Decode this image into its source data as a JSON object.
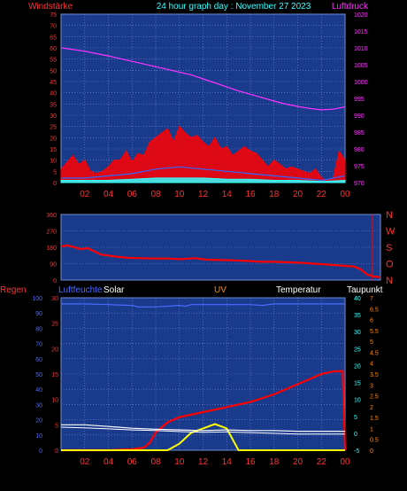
{
  "header": {
    "left_label": "Windstärke",
    "title": "24 hour graph day : November 27 2023",
    "right_label": "Luftdruck"
  },
  "panel2": {
    "direction_labels": [
      "N",
      "W",
      "S",
      "O",
      "N"
    ]
  },
  "panel3": {
    "labels": {
      "rain": "Regen",
      "humidity": "Luftfeuchte",
      "solar": "Solar",
      "uv": "UV",
      "temperature": "Temperatur",
      "dewpoint": "Taupunkt"
    }
  },
  "colors": {
    "plot_bg": "#1a3a8c",
    "grid": "#6f8fd8",
    "red": "#ff0000",
    "pressure": "#ff33ff",
    "gust_cyan": "#33ffff",
    "gust_blue": "#3366ff",
    "axis_cyan": "#33ffff",
    "axis_red": "#ff3333",
    "axis_orange": "#ff8a00",
    "axis_blue": "#4a6bff",
    "white": "#ffffff",
    "solar_yellow": "#ffff00"
  },
  "chart_data": [
    {
      "type": "line",
      "title": "24 hour graph day : November 27 2023",
      "ylabel": "Windstärke",
      "y2label": "Luftdruck",
      "x_ticks": [
        "02",
        "04",
        "06",
        "08",
        "10",
        "12",
        "14",
        "16",
        "18",
        "20",
        "22",
        "00"
      ],
      "ylim": [
        0,
        75
      ],
      "y_ticks": [
        0,
        5,
        10,
        15,
        20,
        25,
        30,
        35,
        40,
        45,
        50,
        55,
        60,
        65,
        70,
        75
      ],
      "y2lim": [
        970,
        1020
      ],
      "y2_ticks": [
        970,
        975,
        980,
        985,
        990,
        995,
        1000,
        1005,
        1010,
        1015,
        1020
      ],
      "grid": true,
      "series": [
        {
          "name": "Luftdruck",
          "axis": "right",
          "x": [
            0,
            1,
            2,
            3,
            4,
            5,
            6,
            7,
            8,
            9,
            10,
            11,
            12,
            13,
            14,
            15,
            16,
            17,
            18,
            19,
            20,
            21,
            22,
            23,
            24
          ],
          "values": [
            1010,
            1009.5,
            1009,
            1008.3,
            1007.6,
            1006.8,
            1006,
            1005.2,
            1004.4,
            1003.6,
            1002.8,
            1002,
            1000.8,
            999.6,
            998.4,
            997.2,
            996.2,
            995.2,
            994.2,
            993.3,
            992.6,
            992,
            991.6,
            991.8,
            992.5
          ]
        },
        {
          "name": "wind_gust",
          "axis": "left",
          "x": [
            0,
            0.5,
            1,
            1.5,
            2,
            2.5,
            3,
            3.5,
            4,
            4.5,
            5,
            5.5,
            6,
            6.5,
            7,
            7.5,
            8,
            8.5,
            9,
            9.5,
            10,
            10.5,
            11,
            11.5,
            12,
            12.5,
            13,
            13.5,
            14,
            14.5,
            15,
            15.5,
            16,
            16.5,
            17,
            17.5,
            18,
            18.5,
            19,
            19.5,
            20,
            20.5,
            21,
            21.5,
            22,
            22.5,
            23,
            23.5,
            24
          ],
          "values": [
            6,
            9,
            12,
            8,
            10,
            5,
            4,
            5,
            7,
            10,
            10,
            14,
            9,
            13,
            12,
            18,
            20,
            22,
            24,
            18,
            25,
            22,
            20,
            21,
            18,
            16,
            20,
            15,
            16,
            12,
            14,
            16,
            14,
            13,
            10,
            7,
            10,
            8,
            6,
            7,
            6,
            5,
            4,
            6,
            2,
            1,
            2,
            14,
            10
          ]
        },
        {
          "name": "wind_mean",
          "axis": "left",
          "x": [
            0,
            2,
            4,
            6,
            8,
            10,
            12,
            14,
            16,
            18,
            20,
            22,
            24
          ],
          "values": [
            2,
            2,
            3,
            4,
            6,
            7,
            6,
            5,
            4,
            3,
            2,
            1,
            3
          ]
        },
        {
          "name": "wind_low",
          "axis": "left",
          "x": [
            0,
            2,
            4,
            6,
            8,
            10,
            12,
            14,
            16,
            18,
            20,
            22,
            24
          ],
          "values": [
            1,
            1,
            1,
            1.5,
            2,
            2,
            2,
            1.5,
            1.5,
            1,
            1,
            0.5,
            1
          ]
        }
      ]
    },
    {
      "type": "scatter",
      "y_ticks": [
        0,
        90,
        180,
        270,
        360
      ],
      "ylim": [
        0,
        360
      ],
      "x_ticks": [],
      "grid": true,
      "series": [
        {
          "name": "wind_direction",
          "x": [
            0,
            0.5,
            1,
            1.5,
            2,
            3,
            4,
            5,
            6,
            7,
            8,
            9,
            10,
            11,
            12,
            13,
            14,
            15,
            16,
            17,
            18,
            19,
            20,
            21,
            22,
            22.5,
            23,
            23.5,
            24
          ],
          "values": [
            185,
            190,
            180,
            170,
            175,
            140,
            130,
            122,
            120,
            118,
            118,
            115,
            120,
            112,
            110,
            108,
            105,
            100,
            100,
            98,
            95,
            90,
            85,
            80,
            75,
            60,
            30,
            20,
            15
          ]
        }
      ]
    },
    {
      "type": "line",
      "x_ticks": [
        "02",
        "04",
        "06",
        "08",
        "10",
        "12",
        "14",
        "16",
        "18",
        "20",
        "22",
        "00"
      ],
      "ylim": [
        0,
        100
      ],
      "y_ticks": [
        0,
        10,
        20,
        30,
        40,
        50,
        60,
        70,
        80,
        90,
        100
      ],
      "rain_ticks": [
        0,
        5,
        10,
        15,
        20,
        25,
        30
      ],
      "temp_ticks": [
        -5,
        0,
        5,
        10,
        15,
        20,
        25,
        30,
        35,
        40
      ],
      "uv_ticks": [
        0,
        0.5,
        1,
        1.5,
        2,
        2.5,
        3,
        3.5,
        4,
        4.5,
        5,
        5.5,
        6,
        6.5,
        7
      ],
      "grid": true,
      "series": [
        {
          "name": "Luftfeuchte",
          "x": [
            0,
            2,
            4,
            6,
            6.5,
            7,
            8,
            10,
            10.5,
            11,
            12,
            14,
            16,
            17,
            18,
            20,
            22,
            24
          ],
          "values": [
            96,
            96,
            95.5,
            95,
            94,
            94,
            94,
            95,
            94.5,
            95.5,
            95.5,
            95.5,
            95.5,
            95,
            96,
            96,
            96,
            96
          ]
        },
        {
          "name": "Regen",
          "x": [
            0,
            2,
            4,
            6,
            7,
            7.5,
            8,
            9,
            10,
            12,
            14,
            16,
            18,
            20,
            21,
            22,
            23,
            23.8,
            24
          ],
          "values": [
            0,
            0,
            0,
            0.2,
            0.5,
            1.5,
            3.5,
            5.5,
            6.5,
            7.5,
            8.5,
            9.5,
            11,
            13,
            14,
            15,
            15.5,
            15.6,
            0
          ]
        },
        {
          "name": "Solar",
          "x": [
            0,
            6,
            9,
            10,
            11,
            12,
            13,
            14,
            14.5,
            15,
            24
          ],
          "values": [
            0,
            0,
            0,
            0.3,
            0.8,
            1,
            1.2,
            1,
            0.5,
            0,
            0
          ]
        },
        {
          "name": "Temperatur",
          "x": [
            0,
            2,
            4,
            6,
            8,
            10,
            12,
            14,
            16,
            18,
            20,
            22,
            24
          ],
          "values": [
            2.5,
            2.5,
            2,
            1.5,
            1.2,
            1,
            0.8,
            1,
            0.8,
            0.8,
            0.6,
            0.6,
            0.6
          ]
        },
        {
          "name": "Taupunkt",
          "x": [
            0,
            2,
            4,
            6,
            8,
            10,
            12,
            14,
            16,
            18,
            20,
            22,
            24
          ],
          "values": [
            1.8,
            1.6,
            1.3,
            1,
            0.8,
            0.5,
            0.3,
            0.4,
            0.2,
            0,
            -0.2,
            -0.2,
            -0.2
          ]
        }
      ]
    }
  ]
}
